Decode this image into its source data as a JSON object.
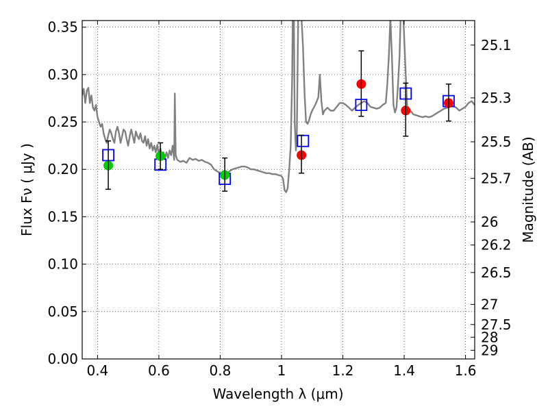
{
  "chart_data": {
    "type": "scatter",
    "title": "",
    "xlabel": "Wavelength  λ (μm)",
    "ylabel": "Flux  Fν  ( μJy )",
    "y2label": "Magnitude (AB)",
    "xlim": [
      0.35,
      1.63
    ],
    "ylim": [
      0.0,
      0.357
    ],
    "grid": true,
    "x_ticks": [
      0.4,
      0.6,
      0.8,
      1.0,
      1.2,
      1.4,
      1.6
    ],
    "x_tick_labels": [
      "0.4",
      "0.6",
      "0.8",
      "1",
      "1.2",
      "1.4",
      "1.6"
    ],
    "y_ticks": [
      0.0,
      0.05,
      0.1,
      0.15,
      0.2,
      0.25,
      0.3,
      0.35
    ],
    "y_tick_labels": [
      "0.00",
      "0.05",
      "0.10",
      "0.15",
      "0.20",
      "0.25",
      "0.30",
      "0.35"
    ],
    "y2_ticks": [
      {
        "mag": 25.1,
        "label": "25.1"
      },
      {
        "mag": 25.3,
        "label": "25.3"
      },
      {
        "mag": 25.5,
        "label": "25.5"
      },
      {
        "mag": 25.7,
        "label": "25.7"
      },
      {
        "mag": 26.0,
        "label": "26"
      },
      {
        "mag": 26.2,
        "label": "26.2"
      },
      {
        "mag": 26.5,
        "label": "26.5"
      },
      {
        "mag": 27.0,
        "label": "27"
      },
      {
        "mag": 27.5,
        "label": "27.5"
      },
      {
        "mag": 28.0,
        "label": "28"
      },
      {
        "mag": 29.0,
        "label": "29"
      }
    ],
    "series": [
      {
        "kind": "line",
        "color": "#808080",
        "points": [
          [
            0.35,
            0.278
          ],
          [
            0.355,
            0.285
          ],
          [
            0.36,
            0.27
          ],
          [
            0.365,
            0.283
          ],
          [
            0.37,
            0.286
          ],
          [
            0.375,
            0.27
          ],
          [
            0.38,
            0.278
          ],
          [
            0.385,
            0.265
          ],
          [
            0.39,
            0.262
          ],
          [
            0.395,
            0.268
          ],
          [
            0.4,
            0.255
          ],
          [
            0.405,
            0.25
          ],
          [
            0.41,
            0.245
          ],
          [
            0.415,
            0.248
          ],
          [
            0.42,
            0.238
          ],
          [
            0.425,
            0.232
          ],
          [
            0.43,
            0.228
          ],
          [
            0.435,
            0.236
          ],
          [
            0.44,
            0.242
          ],
          [
            0.445,
            0.238
          ],
          [
            0.45,
            0.232
          ],
          [
            0.455,
            0.228
          ],
          [
            0.46,
            0.24
          ],
          [
            0.465,
            0.245
          ],
          [
            0.47,
            0.238
          ],
          [
            0.475,
            0.228
          ],
          [
            0.48,
            0.235
          ],
          [
            0.485,
            0.242
          ],
          [
            0.49,
            0.24
          ],
          [
            0.495,
            0.232
          ],
          [
            0.5,
            0.225
          ],
          [
            0.505,
            0.235
          ],
          [
            0.51,
            0.242
          ],
          [
            0.515,
            0.235
          ],
          [
            0.52,
            0.228
          ],
          [
            0.525,
            0.24
          ],
          [
            0.53,
            0.235
          ],
          [
            0.535,
            0.232
          ],
          [
            0.54,
            0.238
          ],
          [
            0.545,
            0.23
          ],
          [
            0.55,
            0.228
          ],
          [
            0.555,
            0.235
          ],
          [
            0.56,
            0.225
          ],
          [
            0.565,
            0.232
          ],
          [
            0.57,
            0.222
          ],
          [
            0.575,
            0.228
          ],
          [
            0.58,
            0.22
          ],
          [
            0.585,
            0.225
          ],
          [
            0.59,
            0.218
          ],
          [
            0.595,
            0.226
          ],
          [
            0.6,
            0.215
          ],
          [
            0.605,
            0.222
          ],
          [
            0.61,
            0.214
          ],
          [
            0.615,
            0.218
          ],
          [
            0.62,
            0.212
          ],
          [
            0.625,
            0.218
          ],
          [
            0.63,
            0.212
          ],
          [
            0.635,
            0.22
          ],
          [
            0.64,
            0.215
          ],
          [
            0.645,
            0.225
          ],
          [
            0.65,
            0.21
          ],
          [
            0.652,
            0.28
          ],
          [
            0.655,
            0.215
          ],
          [
            0.66,
            0.21
          ],
          [
            0.67,
            0.208
          ],
          [
            0.68,
            0.209
          ],
          [
            0.69,
            0.207
          ],
          [
            0.7,
            0.212
          ],
          [
            0.71,
            0.21
          ],
          [
            0.72,
            0.211
          ],
          [
            0.73,
            0.209
          ],
          [
            0.74,
            0.21
          ],
          [
            0.75,
            0.208
          ],
          [
            0.76,
            0.207
          ],
          [
            0.77,
            0.205
          ],
          [
            0.78,
            0.2
          ],
          [
            0.79,
            0.198
          ],
          [
            0.8,
            0.196
          ],
          [
            0.81,
            0.194
          ],
          [
            0.82,
            0.195
          ],
          [
            0.83,
            0.198
          ],
          [
            0.84,
            0.2
          ],
          [
            0.85,
            0.201
          ],
          [
            0.86,
            0.202
          ],
          [
            0.87,
            0.203
          ],
          [
            0.88,
            0.203
          ],
          [
            0.89,
            0.202
          ],
          [
            0.9,
            0.2
          ],
          [
            0.91,
            0.2
          ],
          [
            0.92,
            0.199
          ],
          [
            0.93,
            0.198
          ],
          [
            0.94,
            0.197
          ],
          [
            0.95,
            0.196
          ],
          [
            0.96,
            0.196
          ],
          [
            0.97,
            0.195
          ],
          [
            0.98,
            0.195
          ],
          [
            0.99,
            0.194
          ],
          [
            1.0,
            0.193
          ],
          [
            1.005,
            0.19
          ],
          [
            1.01,
            0.178
          ],
          [
            1.015,
            0.176
          ],
          [
            1.02,
            0.18
          ],
          [
            1.025,
            0.2
          ],
          [
            1.03,
            0.225
          ],
          [
            1.035,
            0.3
          ],
          [
            1.037,
            0.38
          ],
          [
            1.04,
            0.38
          ],
          [
            1.043,
            0.25
          ],
          [
            1.047,
            0.22
          ],
          [
            1.05,
            0.24
          ],
          [
            1.055,
            0.38
          ],
          [
            1.06,
            0.38
          ],
          [
            1.065,
            0.36
          ],
          [
            1.07,
            0.33
          ],
          [
            1.075,
            0.28
          ],
          [
            1.08,
            0.25
          ],
          [
            1.085,
            0.248
          ],
          [
            1.09,
            0.252
          ],
          [
            1.095,
            0.258
          ],
          [
            1.1,
            0.262
          ],
          [
            1.105,
            0.265
          ],
          [
            1.11,
            0.268
          ],
          [
            1.115,
            0.272
          ],
          [
            1.12,
            0.276
          ],
          [
            1.125,
            0.3
          ],
          [
            1.13,
            0.272
          ],
          [
            1.135,
            0.258
          ],
          [
            1.14,
            0.262
          ],
          [
            1.15,
            0.265
          ],
          [
            1.16,
            0.262
          ],
          [
            1.17,
            0.262
          ],
          [
            1.18,
            0.266
          ],
          [
            1.19,
            0.27
          ],
          [
            1.2,
            0.27
          ],
          [
            1.21,
            0.268
          ],
          [
            1.22,
            0.265
          ],
          [
            1.23,
            0.262
          ],
          [
            1.24,
            0.265
          ],
          [
            1.25,
            0.268
          ],
          [
            1.26,
            0.27
          ],
          [
            1.27,
            0.272
          ],
          [
            1.28,
            0.27
          ],
          [
            1.29,
            0.266
          ],
          [
            1.3,
            0.265
          ],
          [
            1.31,
            0.264
          ],
          [
            1.32,
            0.265
          ],
          [
            1.33,
            0.268
          ],
          [
            1.34,
            0.27
          ],
          [
            1.345,
            0.29
          ],
          [
            1.35,
            0.32
          ],
          [
            1.355,
            0.36
          ],
          [
            1.36,
            0.32
          ],
          [
            1.365,
            0.268
          ],
          [
            1.37,
            0.26
          ],
          [
            1.375,
            0.265
          ],
          [
            1.38,
            0.29
          ],
          [
            1.385,
            0.32
          ],
          [
            1.39,
            0.38
          ],
          [
            1.395,
            0.38
          ],
          [
            1.4,
            0.34
          ],
          [
            1.405,
            0.3
          ],
          [
            1.41,
            0.265
          ],
          [
            1.42,
            0.262
          ],
          [
            1.43,
            0.258
          ],
          [
            1.44,
            0.257
          ],
          [
            1.45,
            0.256
          ],
          [
            1.46,
            0.255
          ],
          [
            1.47,
            0.256
          ],
          [
            1.48,
            0.255
          ],
          [
            1.49,
            0.256
          ],
          [
            1.5,
            0.258
          ],
          [
            1.51,
            0.26
          ],
          [
            1.52,
            0.262
          ],
          [
            1.53,
            0.264
          ],
          [
            1.54,
            0.265
          ],
          [
            1.55,
            0.266
          ],
          [
            1.56,
            0.267
          ],
          [
            1.57,
            0.265
          ],
          [
            1.58,
            0.262
          ],
          [
            1.59,
            0.264
          ],
          [
            1.6,
            0.266
          ],
          [
            1.61,
            0.27
          ],
          [
            1.62,
            0.272
          ],
          [
            1.63,
            0.268
          ]
        ]
      },
      {
        "kind": "open-square",
        "color": "#0000ff",
        "points": [
          [
            0.435,
            0.215
          ],
          [
            0.605,
            0.205
          ],
          [
            0.815,
            0.19
          ],
          [
            1.07,
            0.23
          ],
          [
            1.26,
            0.268
          ],
          [
            1.405,
            0.28
          ],
          [
            1.545,
            0.272
          ]
        ]
      },
      {
        "kind": "filled-circle",
        "color": "#00cc00",
        "points": [
          [
            0.435,
            0.204
          ],
          [
            0.605,
            0.214
          ],
          [
            0.815,
            0.194
          ]
        ]
      },
      {
        "kind": "filled-circle",
        "color": "#ff0000",
        "points": [
          [
            1.065,
            0.215
          ],
          [
            1.26,
            0.29
          ],
          [
            1.405,
            0.262
          ],
          [
            1.545,
            0.27
          ]
        ]
      },
      {
        "kind": "errorbar",
        "color": "#000000",
        "points": [
          {
            "x": 0.435,
            "y": 0.204,
            "low": 0.179,
            "high": 0.23
          },
          {
            "x": 0.605,
            "y": 0.214,
            "low": 0.2,
            "high": 0.228
          },
          {
            "x": 0.815,
            "y": 0.194,
            "low": 0.177,
            "high": 0.212
          },
          {
            "x": 1.065,
            "y": 0.215,
            "low": 0.196,
            "high": 0.236
          },
          {
            "x": 1.26,
            "y": 0.29,
            "low": 0.256,
            "high": 0.325
          },
          {
            "x": 1.405,
            "y": 0.262,
            "low": 0.235,
            "high": 0.291
          },
          {
            "x": 1.545,
            "y": 0.27,
            "low": 0.251,
            "high": 0.29
          }
        ]
      }
    ]
  }
}
